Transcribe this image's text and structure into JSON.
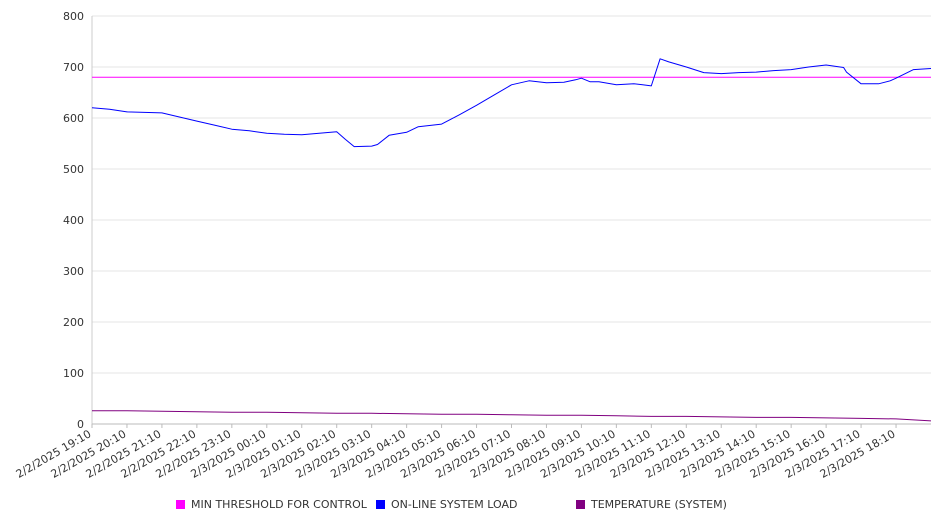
{
  "chart_data": {
    "type": "line",
    "title": "",
    "xlabel": "",
    "ylabel": "",
    "ylim": [
      0,
      800
    ],
    "y_ticks": [
      0,
      100,
      200,
      300,
      400,
      500,
      600,
      700,
      800
    ],
    "grid": true,
    "legend_position": "bottom",
    "x_start": "2/2/2025 19:10",
    "x_end": "2/3/2025 19:10",
    "categories": [
      "2/2/2025 19:10",
      "2/2/2025 20:10",
      "2/2/2025 21:10",
      "2/2/2025 22:10",
      "2/2/2025 23:10",
      "2/3/2025 00:10",
      "2/3/2025 01:10",
      "2/3/2025 02:10",
      "2/3/2025 03:10",
      "2/3/2025 04:10",
      "2/3/2025 05:10",
      "2/3/2025 06:10",
      "2/3/2025 07:10",
      "2/3/2025 08:10",
      "2/3/2025 09:10",
      "2/3/2025 10:10",
      "2/3/2025 11:10",
      "2/3/2025 12:10",
      "2/3/2025 13:10",
      "2/3/2025 14:10",
      "2/3/2025 15:10",
      "2/3/2025 16:10",
      "2/3/2025 17:10",
      "2/3/2025 18:10"
    ],
    "series": [
      {
        "name": "MIN THRESHOLD FOR CONTROL",
        "color": "#ff00ff",
        "x": [
          "2/2/2025 19:10",
          "2/3/2025 19:10"
        ],
        "values": [
          680,
          680
        ]
      },
      {
        "name": "ON-LINE SYSTEM LOAD",
        "color": "#0000ff",
        "x": [
          "2/2/2025 19:10",
          "2/2/2025 19:40",
          "2/2/2025 20:10",
          "2/2/2025 20:40",
          "2/2/2025 21:10",
          "2/2/2025 21:40",
          "2/2/2025 22:10",
          "2/2/2025 22:40",
          "2/2/2025 23:10",
          "2/2/2025 23:40",
          "2/3/2025 00:10",
          "2/3/2025 00:40",
          "2/3/2025 01:10",
          "2/3/2025 01:40",
          "2/3/2025 02:10",
          "2/3/2025 02:25",
          "2/3/2025 02:40",
          "2/3/2025 03:10",
          "2/3/2025 03:20",
          "2/3/2025 03:40",
          "2/3/2025 04:10",
          "2/3/2025 04:30",
          "2/3/2025 05:10",
          "2/3/2025 05:40",
          "2/3/2025 06:10",
          "2/3/2025 06:40",
          "2/3/2025 07:10",
          "2/3/2025 07:40",
          "2/3/2025 08:10",
          "2/3/2025 08:40",
          "2/3/2025 09:00",
          "2/3/2025 09:10",
          "2/3/2025 09:25",
          "2/3/2025 09:40",
          "2/3/2025 10:10",
          "2/3/2025 10:40",
          "2/3/2025 10:55",
          "2/3/2025 11:10",
          "2/3/2025 11:25",
          "2/3/2025 11:40",
          "2/3/2025 12:10",
          "2/3/2025 12:40",
          "2/3/2025 13:10",
          "2/3/2025 13:40",
          "2/3/2025 14:10",
          "2/3/2025 14:40",
          "2/3/2025 15:10",
          "2/3/2025 15:40",
          "2/3/2025 16:10",
          "2/3/2025 16:40",
          "2/3/2025 16:45",
          "2/3/2025 17:10",
          "2/3/2025 17:40",
          "2/3/2025 18:00",
          "2/3/2025 18:10",
          "2/3/2025 18:40",
          "2/3/2025 19:10"
        ],
        "values": [
          620,
          617,
          612,
          611,
          610,
          602,
          594,
          586,
          578,
          575,
          570,
          568,
          567,
          570,
          573,
          558,
          544,
          545,
          548,
          566,
          572,
          583,
          588,
          606,
          625,
          645,
          665,
          673,
          669,
          670,
          675,
          678,
          671,
          671,
          665,
          667,
          665,
          663,
          716,
          710,
          700,
          689,
          687,
          689,
          690,
          693,
          695,
          700,
          704,
          699,
          690,
          667,
          667,
          673,
          678,
          695,
          697
        ]
      },
      {
        "name": "TEMPERATURE (SYSTEM)",
        "color": "#800080",
        "x": [
          "2/2/2025 19:10",
          "2/2/2025 20:10",
          "2/2/2025 21:10",
          "2/2/2025 22:10",
          "2/2/2025 23:10",
          "2/3/2025 00:10",
          "2/3/2025 01:10",
          "2/3/2025 02:10",
          "2/3/2025 03:10",
          "2/3/2025 04:10",
          "2/3/2025 05:10",
          "2/3/2025 06:10",
          "2/3/2025 07:10",
          "2/3/2025 08:10",
          "2/3/2025 09:10",
          "2/3/2025 10:10",
          "2/3/2025 11:10",
          "2/3/2025 12:10",
          "2/3/2025 13:10",
          "2/3/2025 14:10",
          "2/3/2025 15:10",
          "2/3/2025 16:10",
          "2/3/2025 17:10",
          "2/3/2025 18:10",
          "2/3/2025 19:10"
        ],
        "values": [
          26,
          26,
          25,
          24,
          23,
          23,
          22,
          21,
          21,
          20,
          19,
          19,
          18,
          17,
          17,
          16,
          15,
          15,
          14,
          13,
          13,
          12,
          11,
          10,
          6
        ]
      }
    ]
  }
}
